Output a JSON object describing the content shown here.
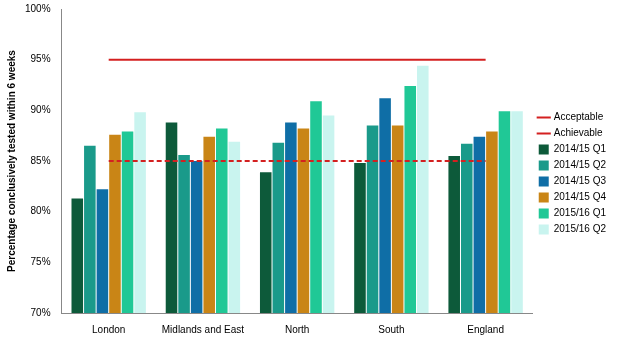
{
  "chart_data": {
    "type": "bar",
    "y_label": "Percentage conclusively tested within 6 weeks",
    "categories": [
      "London",
      "Midlands and East",
      "North",
      "South",
      "England"
    ],
    "series": [
      {
        "name": "2014/15 Q1",
        "color": "#0d5a3a",
        "values": [
          81.3,
          88.8,
          83.9,
          84.8,
          85.5
        ]
      },
      {
        "name": "2014/15 Q2",
        "color": "#1a9a8a",
        "values": [
          86.5,
          85.6,
          86.8,
          88.5,
          86.7
        ]
      },
      {
        "name": "2014/15 Q3",
        "color": "#0f6ea6",
        "values": [
          82.2,
          85.0,
          88.8,
          91.2,
          87.4
        ]
      },
      {
        "name": "2014/15 Q4",
        "color": "#c98516",
        "values": [
          87.6,
          87.4,
          88.2,
          88.5,
          87.9
        ]
      },
      {
        "name": "2015/16 Q1",
        "color": "#20c896",
        "values": [
          87.9,
          88.2,
          90.9,
          92.4,
          89.9
        ]
      },
      {
        "name": "2015/16 Q2",
        "color": "#c9f4ef",
        "values": [
          89.8,
          86.9,
          89.5,
          94.4,
          89.9
        ]
      },
      {
        "name": "Acceptable",
        "type": "line",
        "line_style": "dashed",
        "color": "#d42020",
        "values": [
          85,
          85,
          85,
          85,
          85
        ]
      },
      {
        "name": "Achievable",
        "type": "line",
        "line_style": "solid",
        "color": "#d42020",
        "values": [
          95,
          95,
          95,
          95,
          95
        ]
      }
    ],
    "ylim": [
      70,
      100
    ],
    "yticks": [
      {
        "value": 70,
        "label": "70%"
      },
      {
        "value": 75,
        "label": "75%"
      },
      {
        "value": 80,
        "label": "80%"
      },
      {
        "value": 85,
        "label": "85%"
      },
      {
        "value": 90,
        "label": "90%"
      },
      {
        "value": 95,
        "label": "95%"
      },
      {
        "value": 100,
        "label": "100%"
      }
    ],
    "grid": false,
    "legend": "right"
  }
}
